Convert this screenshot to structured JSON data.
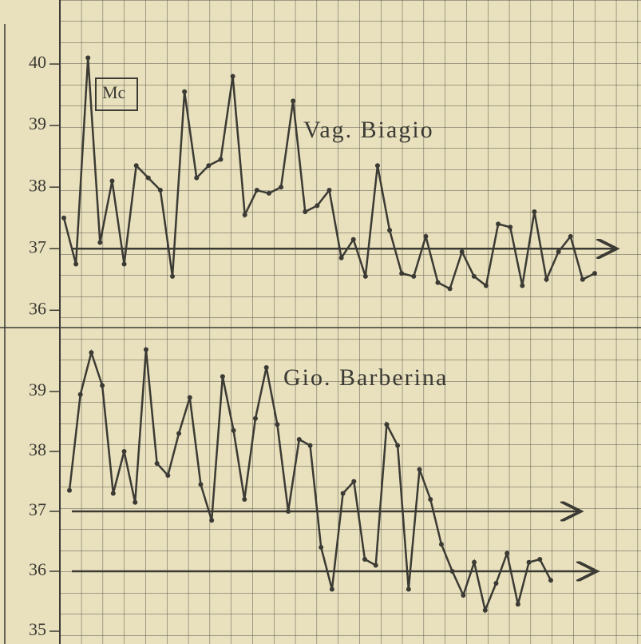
{
  "chart_data": [
    {
      "type": "line",
      "annotations": [
        "Vag. Biagio",
        "Mc"
      ],
      "color": "#3b3a34",
      "values": [
        37.5,
        36.75,
        40.1,
        37.1,
        38.1,
        36.75,
        38.35,
        38.15,
        37.95,
        36.55,
        39.55,
        38.15,
        38.35,
        38.45,
        39.8,
        37.55,
        37.95,
        37.9,
        38.0,
        39.4,
        37.6,
        37.7,
        37.95,
        36.85,
        37.15,
        36.55,
        38.35,
        37.3,
        36.6,
        36.55,
        37.2,
        36.45,
        36.35,
        36.95,
        36.55,
        36.4,
        37.4,
        37.35,
        36.4,
        37.6,
        36.5,
        36.95,
        37.2,
        36.5,
        36.6
      ],
      "ylim": [
        35.9,
        40.3
      ],
      "yticks": [
        36,
        37,
        38,
        39,
        40
      ],
      "reference_lines": [
        37
      ]
    },
    {
      "type": "line",
      "annotations": [
        "Gio. Barberina"
      ],
      "color": "#3b3a34",
      "values": [
        37.35,
        38.95,
        39.65,
        39.1,
        37.3,
        38.0,
        37.15,
        39.7,
        37.8,
        37.6,
        38.3,
        38.9,
        37.45,
        36.85,
        39.25,
        38.35,
        37.2,
        38.55,
        39.4,
        38.45,
        37.0,
        38.2,
        38.1,
        36.4,
        35.7,
        37.3,
        37.5,
        36.2,
        36.1,
        38.45,
        38.1,
        35.7,
        37.7,
        37.2,
        36.45,
        36.0,
        35.6,
        36.15,
        35.35,
        35.8,
        36.3,
        35.45,
        36.15,
        36.2,
        35.85
      ],
      "ylim": [
        35,
        40.2
      ],
      "yticks": [
        35,
        36,
        37,
        38,
        39
      ],
      "reference_lines": [
        37,
        36
      ]
    }
  ]
}
